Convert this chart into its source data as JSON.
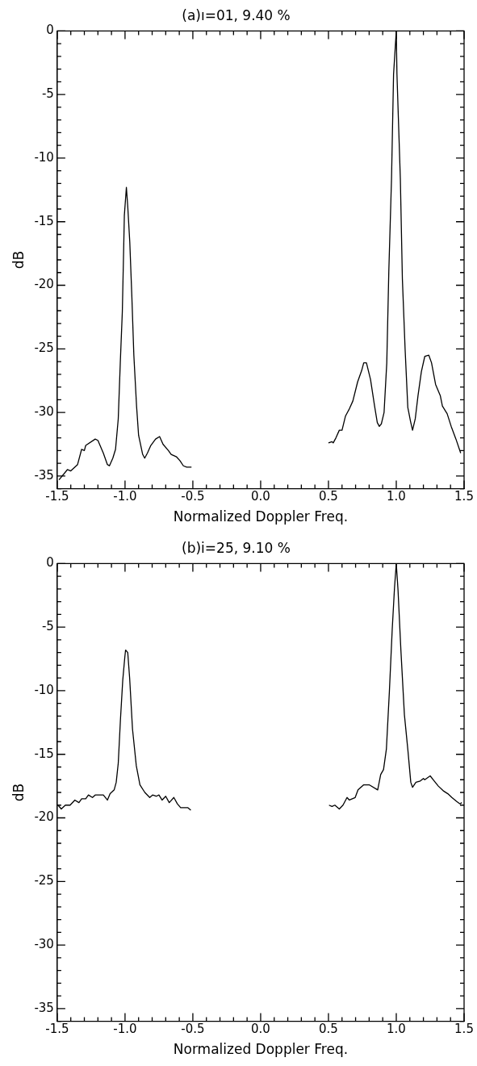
{
  "chart_data": [
    {
      "type": "line",
      "title": "(a)ı=01, 9.40 %",
      "xlabel": "Normalized Doppler Freq.",
      "ylabel": "dB",
      "grid": false,
      "legend": false,
      "marker": "none",
      "line_style": "solid",
      "xlim": [
        -1.5,
        1.5
      ],
      "ylim": [
        -36,
        0
      ],
      "xticks": [
        {
          "value": -1.5,
          "label": "-1.5"
        },
        {
          "value": -1.4,
          "label": null
        },
        {
          "value": -1.3,
          "label": null
        },
        {
          "value": -1.2,
          "label": null
        },
        {
          "value": -1.1,
          "label": null
        },
        {
          "value": -1.0,
          "label": "-1.0"
        },
        {
          "value": -0.9,
          "label": null
        },
        {
          "value": -0.8,
          "label": null
        },
        {
          "value": -0.7,
          "label": null
        },
        {
          "value": -0.6,
          "label": null
        },
        {
          "value": -0.5,
          "label": "-0.5"
        },
        {
          "value": -0.4,
          "label": null
        },
        {
          "value": -0.3,
          "label": null
        },
        {
          "value": -0.2,
          "label": null
        },
        {
          "value": -0.1,
          "label": null
        },
        {
          "value": 0,
          "label": "0.0"
        },
        {
          "value": 0.1,
          "label": null
        },
        {
          "value": 0.2,
          "label": null
        },
        {
          "value": 0.3,
          "label": null
        },
        {
          "value": 0.4,
          "label": null
        },
        {
          "value": 0.5,
          "label": "0.5"
        },
        {
          "value": 0.6,
          "label": null
        },
        {
          "value": 0.7,
          "label": null
        },
        {
          "value": 0.8,
          "label": null
        },
        {
          "value": 0.9,
          "label": null
        },
        {
          "value": 1.0,
          "label": "1.0"
        },
        {
          "value": 1.1,
          "label": null
        },
        {
          "value": 1.2,
          "label": null
        },
        {
          "value": 1.3,
          "label": null
        },
        {
          "value": 1.4,
          "label": null
        },
        {
          "value": 1.5,
          "label": "1.5"
        }
      ],
      "yticks": [
        {
          "value": -36,
          "label": null
        },
        -35,
        {
          "value": -34,
          "label": null
        },
        {
          "value": -33,
          "label": null
        },
        {
          "value": -32,
          "label": null
        },
        {
          "value": -31,
          "label": null
        },
        -30,
        {
          "value": -29,
          "label": null
        },
        {
          "value": -28,
          "label": null
        },
        {
          "value": -27,
          "label": null
        },
        {
          "value": -26,
          "label": null
        },
        -25,
        {
          "value": -24,
          "label": null
        },
        {
          "value": -23,
          "label": null
        },
        {
          "value": -22,
          "label": null
        },
        {
          "value": -21,
          "label": null
        },
        -20,
        {
          "value": -19,
          "label": null
        },
        {
          "value": -18,
          "label": null
        },
        {
          "value": -17,
          "label": null
        },
        {
          "value": -16,
          "label": null
        },
        -15,
        {
          "value": -14,
          "label": null
        },
        {
          "value": -13,
          "label": null
        },
        {
          "value": -12,
          "label": null
        },
        {
          "value": -11,
          "label": null
        },
        -10,
        {
          "value": -9,
          "label": null
        },
        {
          "value": -8,
          "label": null
        },
        {
          "value": -7,
          "label": null
        },
        {
          "value": -6,
          "label": null
        },
        -5,
        {
          "value": -4,
          "label": null
        },
        {
          "value": -3,
          "label": null
        },
        {
          "value": -2,
          "label": null
        },
        {
          "value": -1,
          "label": null
        },
        0
      ],
      "series": [
        {
          "color": "#000000",
          "x": [
            -1.487,
            -1.425,
            -1.4,
            -1.35,
            -1.32,
            -1.3,
            -1.29,
            -1.22,
            -1.2,
            -1.16,
            -1.13,
            -1.115,
            -1.09,
            -1.07,
            -1.05,
            -1.035,
            -1.02,
            -1.01,
            -1.005,
            -0.99,
            -0.98,
            -0.965,
            -0.95,
            -0.935,
            -0.915,
            -0.9,
            -0.87,
            -0.855,
            -0.835,
            -0.81,
            -0.775,
            -0.745,
            -0.72,
            -0.68,
            -0.66,
            -0.62,
            -0.595,
            -0.57,
            -0.545,
            -0.51
          ],
          "values": [
            -35.3,
            -34.5,
            -34.6,
            -34.1,
            -32.9,
            -33.0,
            -32.6,
            -32.1,
            -32.2,
            -33.2,
            -34.1,
            -34.2,
            -33.6,
            -32.9,
            -30.5,
            -26.1,
            -22.1,
            -17.1,
            -14.5,
            -12.3,
            -13.8,
            -16.6,
            -20.8,
            -25.5,
            -29.5,
            -31.8,
            -33.3,
            -33.6,
            -33.2,
            -32.6,
            -32.1,
            -31.9,
            -32.5,
            -33.0,
            -33.3,
            -33.5,
            -33.8,
            -34.2,
            -34.3,
            -34.3
          ]
        },
        {
          "color": "#000000",
          "x": [
            0.5,
            0.525,
            0.535,
            0.555,
            0.58,
            0.6,
            0.625,
            0.655,
            0.68,
            0.715,
            0.745,
            0.76,
            0.78,
            0.81,
            0.84,
            0.86,
            0.875,
            0.89,
            0.91,
            0.93,
            0.945,
            0.965,
            0.98,
            1.0,
            1.005,
            1.03,
            1.045,
            1.065,
            1.085,
            1.105,
            1.12,
            1.14,
            1.16,
            1.185,
            1.21,
            1.24,
            1.26,
            1.29,
            1.325,
            1.34,
            1.375,
            1.405,
            1.44,
            1.475
          ],
          "values": [
            -32.4,
            -32.3,
            -32.4,
            -32.0,
            -31.4,
            -31.4,
            -30.3,
            -29.7,
            -29.1,
            -27.6,
            -26.7,
            -26.1,
            -26.1,
            -27.4,
            -29.5,
            -30.8,
            -31.1,
            -30.9,
            -30.0,
            -26.1,
            -18.9,
            -11.6,
            -3.4,
            0,
            -3.4,
            -11.6,
            -19.5,
            -25.0,
            -29.6,
            -30.7,
            -31.4,
            -30.5,
            -28.7,
            -26.8,
            -25.6,
            -25.5,
            -26.1,
            -27.8,
            -28.7,
            -29.5,
            -30.1,
            -31.1,
            -32.1,
            -33.2
          ]
        }
      ]
    },
    {
      "type": "line",
      "title": "(b)i=25, 9.10 %",
      "xlabel": "Normalized Doppler Freq.",
      "ylabel": "dB",
      "grid": false,
      "legend": false,
      "marker": "none",
      "line_style": "solid",
      "xlim": [
        -1.5,
        1.5
      ],
      "ylim": [
        -36,
        0
      ],
      "xticks": [
        {
          "value": -1.5,
          "label": "-1.5"
        },
        {
          "value": -1.4,
          "label": null
        },
        {
          "value": -1.3,
          "label": null
        },
        {
          "value": -1.2,
          "label": null
        },
        {
          "value": -1.1,
          "label": null
        },
        {
          "value": -1.0,
          "label": "-1.0"
        },
        {
          "value": -0.9,
          "label": null
        },
        {
          "value": -0.8,
          "label": null
        },
        {
          "value": -0.7,
          "label": null
        },
        {
          "value": -0.6,
          "label": null
        },
        {
          "value": -0.5,
          "label": "-0.5"
        },
        {
          "value": -0.4,
          "label": null
        },
        {
          "value": -0.3,
          "label": null
        },
        {
          "value": -0.2,
          "label": null
        },
        {
          "value": -0.1,
          "label": null
        },
        {
          "value": 0,
          "label": "0.0"
        },
        {
          "value": 0.1,
          "label": null
        },
        {
          "value": 0.2,
          "label": null
        },
        {
          "value": 0.3,
          "label": null
        },
        {
          "value": 0.4,
          "label": null
        },
        {
          "value": 0.5,
          "label": "0.5"
        },
        {
          "value": 0.6,
          "label": null
        },
        {
          "value": 0.7,
          "label": null
        },
        {
          "value": 0.8,
          "label": null
        },
        {
          "value": 0.9,
          "label": null
        },
        {
          "value": 1.0,
          "label": "1.0"
        },
        {
          "value": 1.1,
          "label": null
        },
        {
          "value": 1.2,
          "label": null
        },
        {
          "value": 1.3,
          "label": null
        },
        {
          "value": 1.4,
          "label": null
        },
        {
          "value": 1.5,
          "label": "1.5"
        }
      ],
      "yticks": [
        {
          "value": -36,
          "label": null
        },
        -35,
        {
          "value": -34,
          "label": null
        },
        {
          "value": -33,
          "label": null
        },
        {
          "value": -32,
          "label": null
        },
        {
          "value": -31,
          "label": null
        },
        -30,
        {
          "value": -29,
          "label": null
        },
        {
          "value": -28,
          "label": null
        },
        {
          "value": -27,
          "label": null
        },
        {
          "value": -26,
          "label": null
        },
        -25,
        {
          "value": -24,
          "label": null
        },
        {
          "value": -23,
          "label": null
        },
        {
          "value": -22,
          "label": null
        },
        {
          "value": -21,
          "label": null
        },
        -20,
        {
          "value": -19,
          "label": null
        },
        {
          "value": -18,
          "label": null
        },
        {
          "value": -17,
          "label": null
        },
        {
          "value": -16,
          "label": null
        },
        -15,
        {
          "value": -14,
          "label": null
        },
        {
          "value": -13,
          "label": null
        },
        {
          "value": -12,
          "label": null
        },
        {
          "value": -11,
          "label": null
        },
        -10,
        {
          "value": -9,
          "label": null
        },
        {
          "value": -8,
          "label": null
        },
        {
          "value": -7,
          "label": null
        },
        {
          "value": -6,
          "label": null
        },
        -5,
        {
          "value": -4,
          "label": null
        },
        {
          "value": -3,
          "label": null
        },
        {
          "value": -2,
          "label": null
        },
        {
          "value": -1,
          "label": null
        },
        0
      ],
      "series": [
        {
          "color": "#000000",
          "x": [
            -1.494,
            -1.47,
            -1.44,
            -1.405,
            -1.37,
            -1.34,
            -1.32,
            -1.29,
            -1.27,
            -1.24,
            -1.22,
            -1.16,
            -1.13,
            -1.11,
            -1.08,
            -1.065,
            -1.05,
            -1.034,
            -1.017,
            -1.002,
            -0.996,
            -0.98,
            -0.966,
            -0.945,
            -0.917,
            -0.89,
            -0.854,
            -0.818,
            -0.797,
            -0.77,
            -0.75,
            -0.727,
            -0.7,
            -0.674,
            -0.64,
            -0.614,
            -0.59,
            -0.536,
            -0.515
          ],
          "values": [
            -19.0,
            -19.3,
            -19.0,
            -19.0,
            -18.6,
            -18.8,
            -18.5,
            -18.5,
            -18.2,
            -18.4,
            -18.2,
            -18.2,
            -18.6,
            -18.1,
            -17.8,
            -17.2,
            -15.7,
            -12.3,
            -9.2,
            -7.4,
            -6.8,
            -7.0,
            -9.0,
            -13.0,
            -15.9,
            -17.4,
            -18.0,
            -18.4,
            -18.2,
            -18.3,
            -18.2,
            -18.6,
            -18.3,
            -18.8,
            -18.4,
            -18.9,
            -19.2,
            -19.2,
            -19.4
          ]
        },
        {
          "color": "#000000",
          "x": [
            0.504,
            0.526,
            0.547,
            0.58,
            0.607,
            0.637,
            0.654,
            0.697,
            0.718,
            0.76,
            0.8,
            0.863,
            0.885,
            0.906,
            0.927,
            0.949,
            0.97,
            0.987,
            1.0,
            1.013,
            1.034,
            1.06,
            1.085,
            1.107,
            1.12,
            1.145,
            1.177,
            1.2,
            1.21,
            1.25,
            1.28,
            1.31,
            1.35,
            1.38,
            1.41,
            1.444,
            1.47,
            1.483
          ],
          "values": [
            -19.0,
            -19.1,
            -19.0,
            -19.3,
            -19.0,
            -18.4,
            -18.6,
            -18.4,
            -17.8,
            -17.4,
            -17.4,
            -17.8,
            -16.6,
            -16.2,
            -14.6,
            -10.1,
            -5.2,
            -1.9,
            0,
            -2.1,
            -6.8,
            -11.9,
            -14.6,
            -17.2,
            -17.6,
            -17.2,
            -17.1,
            -16.9,
            -17.0,
            -16.7,
            -17.1,
            -17.5,
            -17.9,
            -18.1,
            -18.4,
            -18.7,
            -18.9,
            -18.8
          ]
        }
      ]
    }
  ]
}
